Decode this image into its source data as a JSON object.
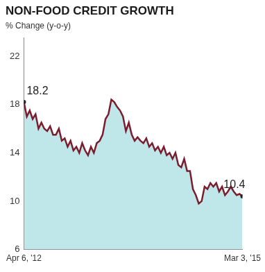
{
  "chart_data": {
    "type": "line",
    "title": "NON-FOOD CREDIT GROWTH",
    "ylabel": "% Change (y-o-y)",
    "categories": [
      "Apr 6, '12",
      null,
      null,
      null,
      null,
      null,
      null,
      null,
      null,
      null,
      null,
      null,
      null,
      null,
      null,
      null,
      null,
      null,
      null,
      null,
      null,
      null,
      null,
      null,
      null,
      null,
      null,
      null,
      null,
      null,
      null,
      null,
      null,
      null,
      null,
      null,
      null,
      null,
      null,
      null,
      null,
      null,
      null,
      null,
      null,
      null,
      null,
      null,
      null,
      null,
      null,
      null,
      null,
      null,
      null,
      null,
      null,
      null,
      null,
      null,
      null,
      null,
      null,
      null,
      null,
      null,
      null,
      null,
      null,
      null,
      null,
      null,
      null,
      null,
      null,
      "Mar 3, '15"
    ],
    "values": [
      18.2,
      17.0,
      17.5,
      16.8,
      17.2,
      16.0,
      16.5,
      16.0,
      15.8,
      16.2,
      15.5,
      15.5,
      16.0,
      15.0,
      15.2,
      14.5,
      15.0,
      14.2,
      14.5,
      14.0,
      14.8,
      14.2,
      13.8,
      14.5,
      14.0,
      14.8,
      15.0,
      15.5,
      16.8,
      17.2,
      18.4,
      18.2,
      17.8,
      17.5,
      17.0,
      15.8,
      16.5,
      15.5,
      15.0,
      15.3,
      15.0,
      14.8,
      15.2,
      14.5,
      14.8,
      14.2,
      14.5,
      14.0,
      14.5,
      13.8,
      14.0,
      13.5,
      14.0,
      13.0,
      12.8,
      13.5,
      12.5,
      12.5,
      11.0,
      10.5,
      9.8,
      10.0,
      11.2,
      11.0,
      11.5,
      11.2,
      11.5,
      10.8,
      11.2,
      10.5,
      10.8,
      11.2,
      10.8,
      10.5,
      10.6,
      10.4
    ],
    "value_labels": [
      "18.2",
      null,
      null,
      null,
      null,
      null,
      null,
      null,
      null,
      null,
      null,
      null,
      null,
      null,
      null,
      null,
      null,
      null,
      null,
      null,
      null,
      null,
      null,
      null,
      null,
      null,
      null,
      null,
      null,
      null,
      null,
      null,
      null,
      null,
      null,
      null,
      null,
      null,
      null,
      null,
      null,
      null,
      null,
      null,
      null,
      null,
      null,
      null,
      null,
      null,
      null,
      null,
      null,
      null,
      null,
      null,
      null,
      null,
      null,
      null,
      null,
      null,
      null,
      null,
      null,
      null,
      null,
      null,
      null,
      null,
      null,
      null,
      null,
      null,
      null,
      "10.4"
    ],
    "data_labels": true,
    "color": "#7b1c2c",
    "fill_color": "#bfe7ea",
    "ylim": [
      6,
      23.5
    ],
    "yticks": [
      6,
      10,
      14,
      18,
      22
    ],
    "grid": false
  }
}
